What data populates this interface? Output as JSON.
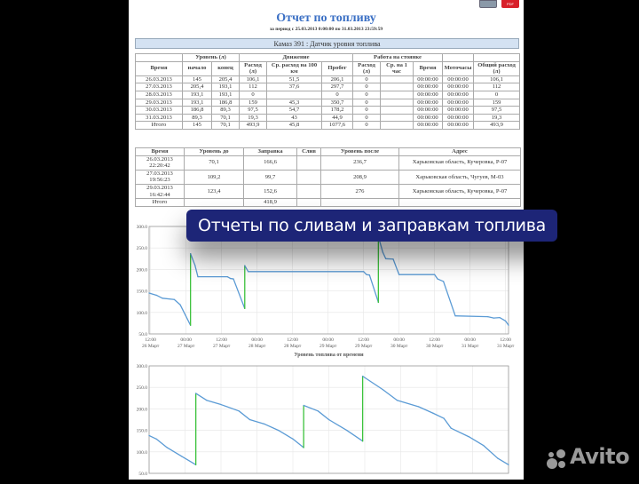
{
  "report": {
    "title": "Отчет по топливу",
    "period": "за период с 25.03.2013 0:00:00 по 31.03.2013 23:59:59",
    "vehicle": "Камаз 391 : Датчик уровня топлива",
    "icons": [
      "printer-icon",
      "pdf-icon"
    ],
    "pdf_label": "PDF"
  },
  "summary_table": {
    "group_headers": [
      "Уровень (л)",
      "Движение",
      "Работа на стоянке"
    ],
    "headers": [
      "Время",
      "начало",
      "конец",
      "Расход (л)",
      "Ср. расход на 100 км",
      "Пробег",
      "Расход (л)",
      "Ср. на 1 час",
      "Время",
      "Моточасы",
      "Общий расход (л)"
    ],
    "rows": [
      [
        "26.03.2013",
        "145",
        "205,4",
        "106,1",
        "51,5",
        "206,1",
        "0",
        "",
        "00:00:00",
        "00:00:00",
        "106,1"
      ],
      [
        "27.03.2013",
        "205,4",
        "193,1",
        "112",
        "37,6",
        "297,7",
        "0",
        "",
        "00:00:00",
        "00:00:00",
        "112"
      ],
      [
        "28.03.2013",
        "193,1",
        "193,1",
        "0",
        "",
        "0",
        "0",
        "",
        "00:00:00",
        "00:00:00",
        "0"
      ],
      [
        "29.03.2013",
        "193,1",
        "186,8",
        "159",
        "45,3",
        "350,7",
        "0",
        "",
        "00:00:00",
        "00:00:00",
        "159"
      ],
      [
        "30.03.2013",
        "186,8",
        "89,3",
        "97,5",
        "54,7",
        "178,2",
        "0",
        "",
        "00:00:00",
        "00:00:00",
        "97,5"
      ],
      [
        "31.03.2013",
        "89,3",
        "70,1",
        "19,3",
        "43",
        "44,9",
        "0",
        "",
        "00:00:00",
        "00:00:00",
        "19,3"
      ],
      [
        "Итого",
        "145",
        "70,1",
        "493,9",
        "45,8",
        "1077,6",
        "0",
        "",
        "00:00:00",
        "00:00:00",
        "493,9"
      ]
    ]
  },
  "events_table": {
    "headers": [
      "Время",
      "Уровень до",
      "Заправка",
      "Слив",
      "Уровень после",
      "Адрес"
    ],
    "rows": [
      [
        "26.03.2013 22:20:42",
        "70,1",
        "166,6",
        "",
        "236,7",
        "Харьковская область, Кучеровка, Р-07"
      ],
      [
        "27.03.2013 19:56:23",
        "109,2",
        "99,7",
        "",
        "208,9",
        "Харьковская область, Чугуев, М-03"
      ],
      [
        "29.03.2013 16:42:44",
        "123,4",
        "152,6",
        "",
        "276",
        "Харьковская область, Кучеровка, Р-07"
      ],
      [
        "Итого",
        "",
        "418,9",
        "",
        "",
        ""
      ]
    ]
  },
  "banner": {
    "text": "Отчеты по сливам и заправкам топлива"
  },
  "watermark": {
    "text": "Avito"
  },
  "chart_data": [
    {
      "type": "line",
      "title": "",
      "xlabel": "Уровень топлива от времени",
      "ylabel": "",
      "ylim": [
        50,
        300
      ],
      "grid": true,
      "yticks": [
        "50.0",
        "100.0",
        "150.0",
        "200.0",
        "250.0",
        "300.0"
      ],
      "xticks": [
        [
          "12:00",
          "26 Март"
        ],
        [
          "00:00",
          "27 Март"
        ],
        [
          "12:00",
          "27 Март"
        ],
        [
          "00:00",
          "28 Март"
        ],
        [
          "12:00",
          "28 Март"
        ],
        [
          "00:00",
          "29 Март"
        ],
        [
          "12:00",
          "29 Март"
        ],
        [
          "00:00",
          "30 Март"
        ],
        [
          "12:00",
          "30 Март"
        ],
        [
          "00:00",
          "31 Март"
        ],
        [
          "12:00",
          "31 Март"
        ]
      ],
      "xlim": [
        "2013-03-26T11:30",
        "2013-03-31T13:00"
      ],
      "colors": {
        "level": "#5b9bd5",
        "refuel": "#3cc23c"
      },
      "points": [
        [
          "2013-03-26T11:30",
          145
        ],
        [
          "2013-03-26T14:00",
          140
        ],
        [
          "2013-03-26T16:00",
          133
        ],
        [
          "2013-03-26T20:00",
          130
        ],
        [
          "2013-03-26T22:00",
          118
        ],
        [
          "2013-03-27T01:30",
          70.1
        ],
        [
          "2013-03-27T01:30",
          236.7
        ],
        [
          "2013-03-27T03:00",
          210
        ],
        [
          "2013-03-27T04:00",
          183
        ],
        [
          "2013-03-27T14:00",
          183
        ],
        [
          "2013-03-27T15:00",
          179
        ],
        [
          "2013-03-27T16:00",
          178
        ],
        [
          "2013-03-27T19:50",
          109.2
        ],
        [
          "2013-03-27T19:50",
          208.9
        ],
        [
          "2013-03-27T21:00",
          195
        ],
        [
          "2013-03-29T12:00",
          195
        ],
        [
          "2013-03-29T13:00",
          188
        ],
        [
          "2013-03-29T14:00",
          187
        ],
        [
          "2013-03-29T17:00",
          123.4
        ],
        [
          "2013-03-29T17:00",
          276
        ],
        [
          "2013-03-29T18:30",
          240
        ],
        [
          "2013-03-29T19:30",
          225
        ],
        [
          "2013-03-29T22:00",
          224
        ],
        [
          "2013-03-30T00:00",
          188
        ],
        [
          "2013-03-30T12:00",
          188
        ],
        [
          "2013-03-30T13:00",
          178
        ],
        [
          "2013-03-30T15:00",
          172
        ],
        [
          "2013-03-30T19:00",
          92
        ],
        [
          "2013-03-31T06:00",
          90
        ],
        [
          "2013-03-31T08:00",
          87
        ],
        [
          "2013-03-31T10:00",
          88
        ],
        [
          "2013-03-31T12:00",
          80
        ],
        [
          "2013-03-31T13:00",
          70.1
        ]
      ]
    },
    {
      "type": "line",
      "title": "",
      "ylim": [
        50,
        300
      ],
      "grid": true,
      "yticks": [
        "50.0",
        "100.0",
        "150.0",
        "200.0",
        "250.0",
        "300.0"
      ],
      "xlim": [
        "2013-03-26T12:00",
        "2013-03-31T12:00"
      ],
      "colors": {
        "level": "#5b9bd5",
        "refuel": "#3cc23c"
      },
      "points": [
        [
          "2013-03-26T12:00",
          138
        ],
        [
          "2013-03-26T14:24",
          130
        ],
        [
          "2013-03-26T18:00",
          110
        ],
        [
          "2013-03-26T22:48",
          90
        ],
        [
          "2013-03-27T03:36",
          70
        ],
        [
          "2013-03-27T03:36",
          236
        ],
        [
          "2013-03-27T07:12",
          220
        ],
        [
          "2013-03-27T12:00",
          210
        ],
        [
          "2013-03-27T18:00",
          195
        ],
        [
          "2013-03-27T21:36",
          175
        ],
        [
          "2013-03-28T02:24",
          165
        ],
        [
          "2013-03-28T07:12",
          150
        ],
        [
          "2013-03-28T12:00",
          130
        ],
        [
          "2013-03-28T15:36",
          110
        ],
        [
          "2013-03-28T15:36",
          208
        ],
        [
          "2013-03-28T20:24",
          195
        ],
        [
          "2013-03-29T00:00",
          175
        ],
        [
          "2013-03-29T06:00",
          150
        ],
        [
          "2013-03-29T11:18",
          125
        ],
        [
          "2013-03-29T11:18",
          276
        ],
        [
          "2013-03-29T18:00",
          245
        ],
        [
          "2013-03-29T22:48",
          220
        ],
        [
          "2013-03-30T06:00",
          205
        ],
        [
          "2013-03-30T10:48",
          190
        ],
        [
          "2013-03-30T14:24",
          178
        ],
        [
          "2013-03-30T16:48",
          155
        ],
        [
          "2013-03-30T22:48",
          135
        ],
        [
          "2013-03-31T03:36",
          115
        ],
        [
          "2013-03-31T08:24",
          85
        ],
        [
          "2013-03-31T12:00",
          70
        ]
      ]
    }
  ]
}
